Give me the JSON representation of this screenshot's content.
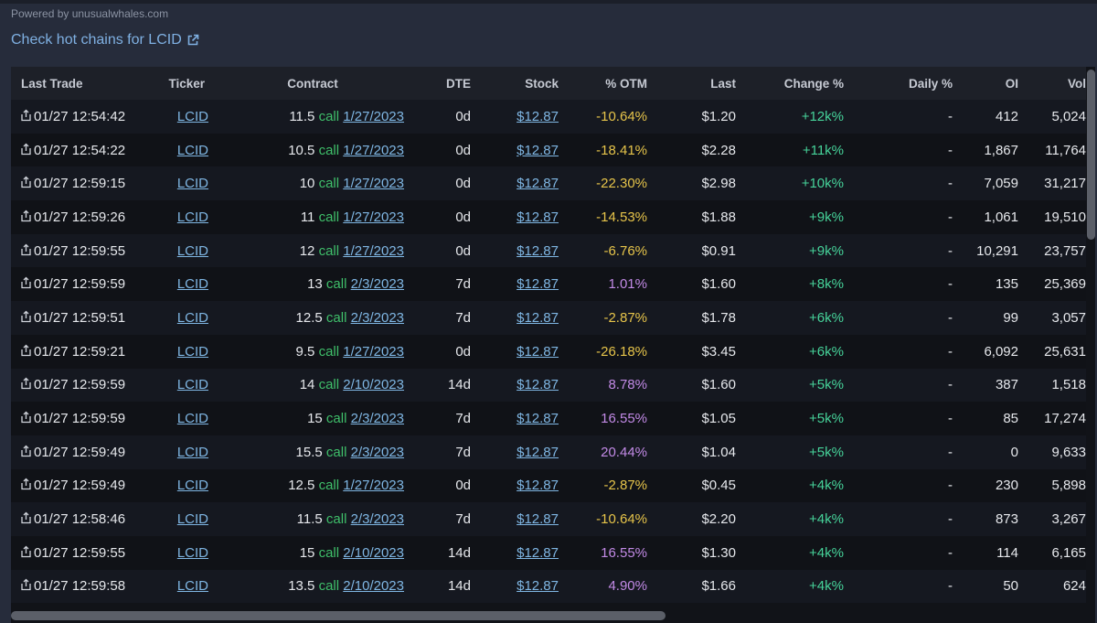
{
  "powered_by": "Powered by unusualwhales.com",
  "hot_chains_link": "Check hot chains for LCID",
  "columns": {
    "last_trade": "Last Trade",
    "ticker": "Ticker",
    "contract": "Contract",
    "dte": "DTE",
    "stock": "Stock",
    "otm": "% OTM",
    "last": "Last",
    "change": "Change %",
    "daily": "Daily %",
    "oi": "OI",
    "vol": "Vol"
  },
  "rows": [
    {
      "last_trade": "01/27 12:54:42",
      "ticker": "LCID",
      "strike": "11.5",
      "type": "call",
      "expiry": "1/27/2023",
      "dte": "0d",
      "stock": "$12.87",
      "otm": "-10.64%",
      "last": "$1.20",
      "change": "+12k%",
      "daily": "-",
      "oi": "412",
      "vol": "5,024"
    },
    {
      "last_trade": "01/27 12:54:22",
      "ticker": "LCID",
      "strike": "10.5",
      "type": "call",
      "expiry": "1/27/2023",
      "dte": "0d",
      "stock": "$12.87",
      "otm": "-18.41%",
      "last": "$2.28",
      "change": "+11k%",
      "daily": "-",
      "oi": "1,867",
      "vol": "11,764"
    },
    {
      "last_trade": "01/27 12:59:15",
      "ticker": "LCID",
      "strike": "10",
      "type": "call",
      "expiry": "1/27/2023",
      "dte": "0d",
      "stock": "$12.87",
      "otm": "-22.30%",
      "last": "$2.98",
      "change": "+10k%",
      "daily": "-",
      "oi": "7,059",
      "vol": "31,217"
    },
    {
      "last_trade": "01/27 12:59:26",
      "ticker": "LCID",
      "strike": "11",
      "type": "call",
      "expiry": "1/27/2023",
      "dte": "0d",
      "stock": "$12.87",
      "otm": "-14.53%",
      "last": "$1.88",
      "change": "+9k%",
      "daily": "-",
      "oi": "1,061",
      "vol": "19,510"
    },
    {
      "last_trade": "01/27 12:59:55",
      "ticker": "LCID",
      "strike": "12",
      "type": "call",
      "expiry": "1/27/2023",
      "dte": "0d",
      "stock": "$12.87",
      "otm": "-6.76%",
      "last": "$0.91",
      "change": "+9k%",
      "daily": "-",
      "oi": "10,291",
      "vol": "23,757"
    },
    {
      "last_trade": "01/27 12:59:59",
      "ticker": "LCID",
      "strike": "13",
      "type": "call",
      "expiry": "2/3/2023",
      "dte": "7d",
      "stock": "$12.87",
      "otm": "1.01%",
      "last": "$1.60",
      "change": "+8k%",
      "daily": "-",
      "oi": "135",
      "vol": "25,369"
    },
    {
      "last_trade": "01/27 12:59:51",
      "ticker": "LCID",
      "strike": "12.5",
      "type": "call",
      "expiry": "2/3/2023",
      "dte": "7d",
      "stock": "$12.87",
      "otm": "-2.87%",
      "last": "$1.78",
      "change": "+6k%",
      "daily": "-",
      "oi": "99",
      "vol": "3,057"
    },
    {
      "last_trade": "01/27 12:59:21",
      "ticker": "LCID",
      "strike": "9.5",
      "type": "call",
      "expiry": "1/27/2023",
      "dte": "0d",
      "stock": "$12.87",
      "otm": "-26.18%",
      "last": "$3.45",
      "change": "+6k%",
      "daily": "-",
      "oi": "6,092",
      "vol": "25,631"
    },
    {
      "last_trade": "01/27 12:59:59",
      "ticker": "LCID",
      "strike": "14",
      "type": "call",
      "expiry": "2/10/2023",
      "dte": "14d",
      "stock": "$12.87",
      "otm": "8.78%",
      "last": "$1.60",
      "change": "+5k%",
      "daily": "-",
      "oi": "387",
      "vol": "1,518"
    },
    {
      "last_trade": "01/27 12:59:59",
      "ticker": "LCID",
      "strike": "15",
      "type": "call",
      "expiry": "2/3/2023",
      "dte": "7d",
      "stock": "$12.87",
      "otm": "16.55%",
      "last": "$1.05",
      "change": "+5k%",
      "daily": "-",
      "oi": "85",
      "vol": "17,274"
    },
    {
      "last_trade": "01/27 12:59:49",
      "ticker": "LCID",
      "strike": "15.5",
      "type": "call",
      "expiry": "2/3/2023",
      "dte": "7d",
      "stock": "$12.87",
      "otm": "20.44%",
      "last": "$1.04",
      "change": "+5k%",
      "daily": "-",
      "oi": "0",
      "vol": "9,633"
    },
    {
      "last_trade": "01/27 12:59:49",
      "ticker": "LCID",
      "strike": "12.5",
      "type": "call",
      "expiry": "1/27/2023",
      "dte": "0d",
      "stock": "$12.87",
      "otm": "-2.87%",
      "last": "$0.45",
      "change": "+4k%",
      "daily": "-",
      "oi": "230",
      "vol": "5,898"
    },
    {
      "last_trade": "01/27 12:58:46",
      "ticker": "LCID",
      "strike": "11.5",
      "type": "call",
      "expiry": "2/3/2023",
      "dte": "7d",
      "stock": "$12.87",
      "otm": "-10.64%",
      "last": "$2.20",
      "change": "+4k%",
      "daily": "-",
      "oi": "873",
      "vol": "3,267"
    },
    {
      "last_trade": "01/27 12:59:55",
      "ticker": "LCID",
      "strike": "15",
      "type": "call",
      "expiry": "2/10/2023",
      "dte": "14d",
      "stock": "$12.87",
      "otm": "16.55%",
      "last": "$1.30",
      "change": "+4k%",
      "daily": "-",
      "oi": "114",
      "vol": "6,165"
    },
    {
      "last_trade": "01/27 12:59:58",
      "ticker": "LCID",
      "strike": "13.5",
      "type": "call",
      "expiry": "2/10/2023",
      "dte": "14d",
      "stock": "$12.87",
      "otm": "4.90%",
      "last": "$1.66",
      "change": "+4k%",
      "daily": "-",
      "oi": "50",
      "vol": "624"
    }
  ]
}
